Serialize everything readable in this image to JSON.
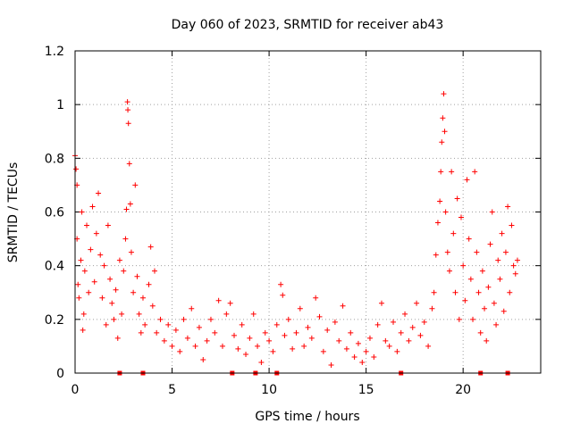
{
  "chart_data": {
    "type": "scatter",
    "title": "Day 060 of 2023, SRMTID for receiver ab43",
    "xlabel": "GPS time / hours",
    "ylabel": "SRMTID / TECUs",
    "xlim": [
      0,
      24
    ],
    "ylim": [
      0,
      1.2
    ],
    "xticks": [
      0,
      5,
      10,
      15,
      20
    ],
    "xtick_labels": [
      "0",
      "5",
      "10",
      "15",
      "20"
    ],
    "yticks": [
      0,
      0.2,
      0.4,
      0.6,
      0.8,
      1,
      1.2
    ],
    "ytick_labels": [
      "0",
      "0.2",
      "0.4",
      "0.6",
      "0.8",
      "1",
      "1.2"
    ],
    "grid": true,
    "marker": "+",
    "marker_color": "#ff0000",
    "series": [
      {
        "name": "SRMTID",
        "x_range": [
          0,
          22.8
        ],
        "envelope_note": "dense cloud of + markers; values listed as representative points read from the figure",
        "points": [
          [
            0.0,
            0.81
          ],
          [
            0.05,
            0.76
          ],
          [
            0.1,
            0.7
          ],
          [
            0.1,
            0.5
          ],
          [
            0.15,
            0.33
          ],
          [
            0.2,
            0.28
          ],
          [
            0.3,
            0.42
          ],
          [
            0.35,
            0.6
          ],
          [
            0.4,
            0.16
          ],
          [
            0.45,
            0.22
          ],
          [
            0.5,
            0.38
          ],
          [
            0.6,
            0.55
          ],
          [
            0.7,
            0.3
          ],
          [
            0.8,
            0.46
          ],
          [
            0.9,
            0.62
          ],
          [
            1.0,
            0.34
          ],
          [
            1.1,
            0.52
          ],
          [
            1.2,
            0.67
          ],
          [
            1.3,
            0.44
          ],
          [
            1.4,
            0.28
          ],
          [
            1.5,
            0.4
          ],
          [
            1.6,
            0.18
          ],
          [
            1.7,
            0.55
          ],
          [
            1.8,
            0.35
          ],
          [
            1.9,
            0.26
          ],
          [
            2.0,
            0.2
          ],
          [
            2.1,
            0.31
          ],
          [
            2.2,
            0.13
          ],
          [
            2.3,
            0.42
          ],
          [
            2.4,
            0.22
          ],
          [
            2.5,
            0.38
          ],
          [
            2.6,
            0.5
          ],
          [
            2.65,
            0.61
          ],
          [
            2.7,
            1.01
          ],
          [
            2.72,
            0.98
          ],
          [
            2.75,
            0.93
          ],
          [
            2.8,
            0.78
          ],
          [
            2.85,
            0.63
          ],
          [
            2.9,
            0.45
          ],
          [
            3.0,
            0.3
          ],
          [
            3.1,
            0.7
          ],
          [
            3.2,
            0.36
          ],
          [
            3.3,
            0.22
          ],
          [
            3.4,
            0.15
          ],
          [
            3.5,
            0.28
          ],
          [
            3.6,
            0.18
          ],
          [
            3.8,
            0.33
          ],
          [
            3.9,
            0.47
          ],
          [
            4.0,
            0.25
          ],
          [
            4.1,
            0.38
          ],
          [
            4.2,
            0.15
          ],
          [
            4.4,
            0.2
          ],
          [
            4.6,
            0.12
          ],
          [
            4.8,
            0.18
          ],
          [
            5.0,
            0.1
          ],
          [
            5.2,
            0.16
          ],
          [
            5.4,
            0.08
          ],
          [
            5.6,
            0.2
          ],
          [
            5.8,
            0.13
          ],
          [
            6.0,
            0.24
          ],
          [
            6.2,
            0.1
          ],
          [
            6.4,
            0.17
          ],
          [
            6.6,
            0.05
          ],
          [
            6.8,
            0.12
          ],
          [
            7.0,
            0.2
          ],
          [
            7.2,
            0.15
          ],
          [
            7.4,
            0.27
          ],
          [
            7.6,
            0.1
          ],
          [
            7.8,
            0.22
          ],
          [
            8.0,
            0.26
          ],
          [
            8.2,
            0.14
          ],
          [
            8.4,
            0.09
          ],
          [
            8.6,
            0.18
          ],
          [
            8.8,
            0.07
          ],
          [
            9.0,
            0.13
          ],
          [
            9.2,
            0.22
          ],
          [
            9.4,
            0.1
          ],
          [
            9.6,
            0.04
          ],
          [
            9.8,
            0.15
          ],
          [
            10.0,
            0.12
          ],
          [
            10.2,
            0.08
          ],
          [
            10.4,
            0.18
          ],
          [
            10.6,
            0.33
          ],
          [
            10.7,
            0.29
          ],
          [
            10.8,
            0.14
          ],
          [
            11.0,
            0.2
          ],
          [
            11.2,
            0.09
          ],
          [
            11.4,
            0.15
          ],
          [
            11.6,
            0.24
          ],
          [
            11.8,
            0.1
          ],
          [
            12.0,
            0.17
          ],
          [
            12.2,
            0.13
          ],
          [
            12.4,
            0.28
          ],
          [
            12.6,
            0.21
          ],
          [
            12.8,
            0.08
          ],
          [
            13.0,
            0.16
          ],
          [
            13.2,
            0.03
          ],
          [
            13.4,
            0.19
          ],
          [
            13.6,
            0.12
          ],
          [
            13.8,
            0.25
          ],
          [
            14.0,
            0.09
          ],
          [
            14.2,
            0.15
          ],
          [
            14.4,
            0.06
          ],
          [
            14.6,
            0.11
          ],
          [
            14.8,
            0.04
          ],
          [
            15.0,
            0.08
          ],
          [
            15.2,
            0.13
          ],
          [
            15.4,
            0.06
          ],
          [
            15.6,
            0.18
          ],
          [
            15.8,
            0.26
          ],
          [
            16.0,
            0.12
          ],
          [
            16.2,
            0.1
          ],
          [
            16.4,
            0.19
          ],
          [
            16.6,
            0.08
          ],
          [
            16.8,
            0.15
          ],
          [
            17.0,
            0.22
          ],
          [
            17.2,
            0.12
          ],
          [
            17.4,
            0.17
          ],
          [
            17.6,
            0.26
          ],
          [
            17.8,
            0.14
          ],
          [
            18.0,
            0.19
          ],
          [
            18.2,
            0.1
          ],
          [
            18.4,
            0.24
          ],
          [
            18.5,
            0.3
          ],
          [
            18.6,
            0.44
          ],
          [
            18.7,
            0.56
          ],
          [
            18.8,
            0.64
          ],
          [
            18.85,
            0.75
          ],
          [
            18.9,
            0.86
          ],
          [
            18.95,
            0.95
          ],
          [
            19.0,
            1.04
          ],
          [
            19.05,
            0.9
          ],
          [
            19.1,
            0.6
          ],
          [
            19.2,
            0.45
          ],
          [
            19.3,
            0.38
          ],
          [
            19.4,
            0.75
          ],
          [
            19.5,
            0.52
          ],
          [
            19.6,
            0.3
          ],
          [
            19.7,
            0.65
          ],
          [
            19.8,
            0.2
          ],
          [
            19.9,
            0.58
          ],
          [
            20.0,
            0.4
          ],
          [
            20.1,
            0.27
          ],
          [
            20.2,
            0.72
          ],
          [
            20.3,
            0.5
          ],
          [
            20.4,
            0.35
          ],
          [
            20.5,
            0.2
          ],
          [
            20.6,
            0.75
          ],
          [
            20.7,
            0.45
          ],
          [
            20.8,
            0.3
          ],
          [
            20.9,
            0.15
          ],
          [
            21.0,
            0.38
          ],
          [
            21.1,
            0.24
          ],
          [
            21.2,
            0.12
          ],
          [
            21.3,
            0.32
          ],
          [
            21.4,
            0.48
          ],
          [
            21.5,
            0.6
          ],
          [
            21.6,
            0.26
          ],
          [
            21.7,
            0.18
          ],
          [
            21.8,
            0.42
          ],
          [
            21.9,
            0.35
          ],
          [
            22.0,
            0.52
          ],
          [
            22.1,
            0.23
          ],
          [
            22.2,
            0.45
          ],
          [
            22.3,
            0.62
          ],
          [
            22.4,
            0.3
          ],
          [
            22.5,
            0.55
          ],
          [
            22.6,
            0.4
          ],
          [
            22.7,
            0.37
          ],
          [
            22.8,
            0.42
          ]
        ]
      },
      {
        "name": "zero-level markers",
        "marker": "square",
        "points": [
          [
            2.3,
            0
          ],
          [
            3.5,
            0
          ],
          [
            8.1,
            0
          ],
          [
            9.3,
            0
          ],
          [
            10.4,
            0
          ],
          [
            16.8,
            0
          ],
          [
            20.9,
            0
          ],
          [
            22.3,
            0
          ]
        ]
      }
    ]
  }
}
